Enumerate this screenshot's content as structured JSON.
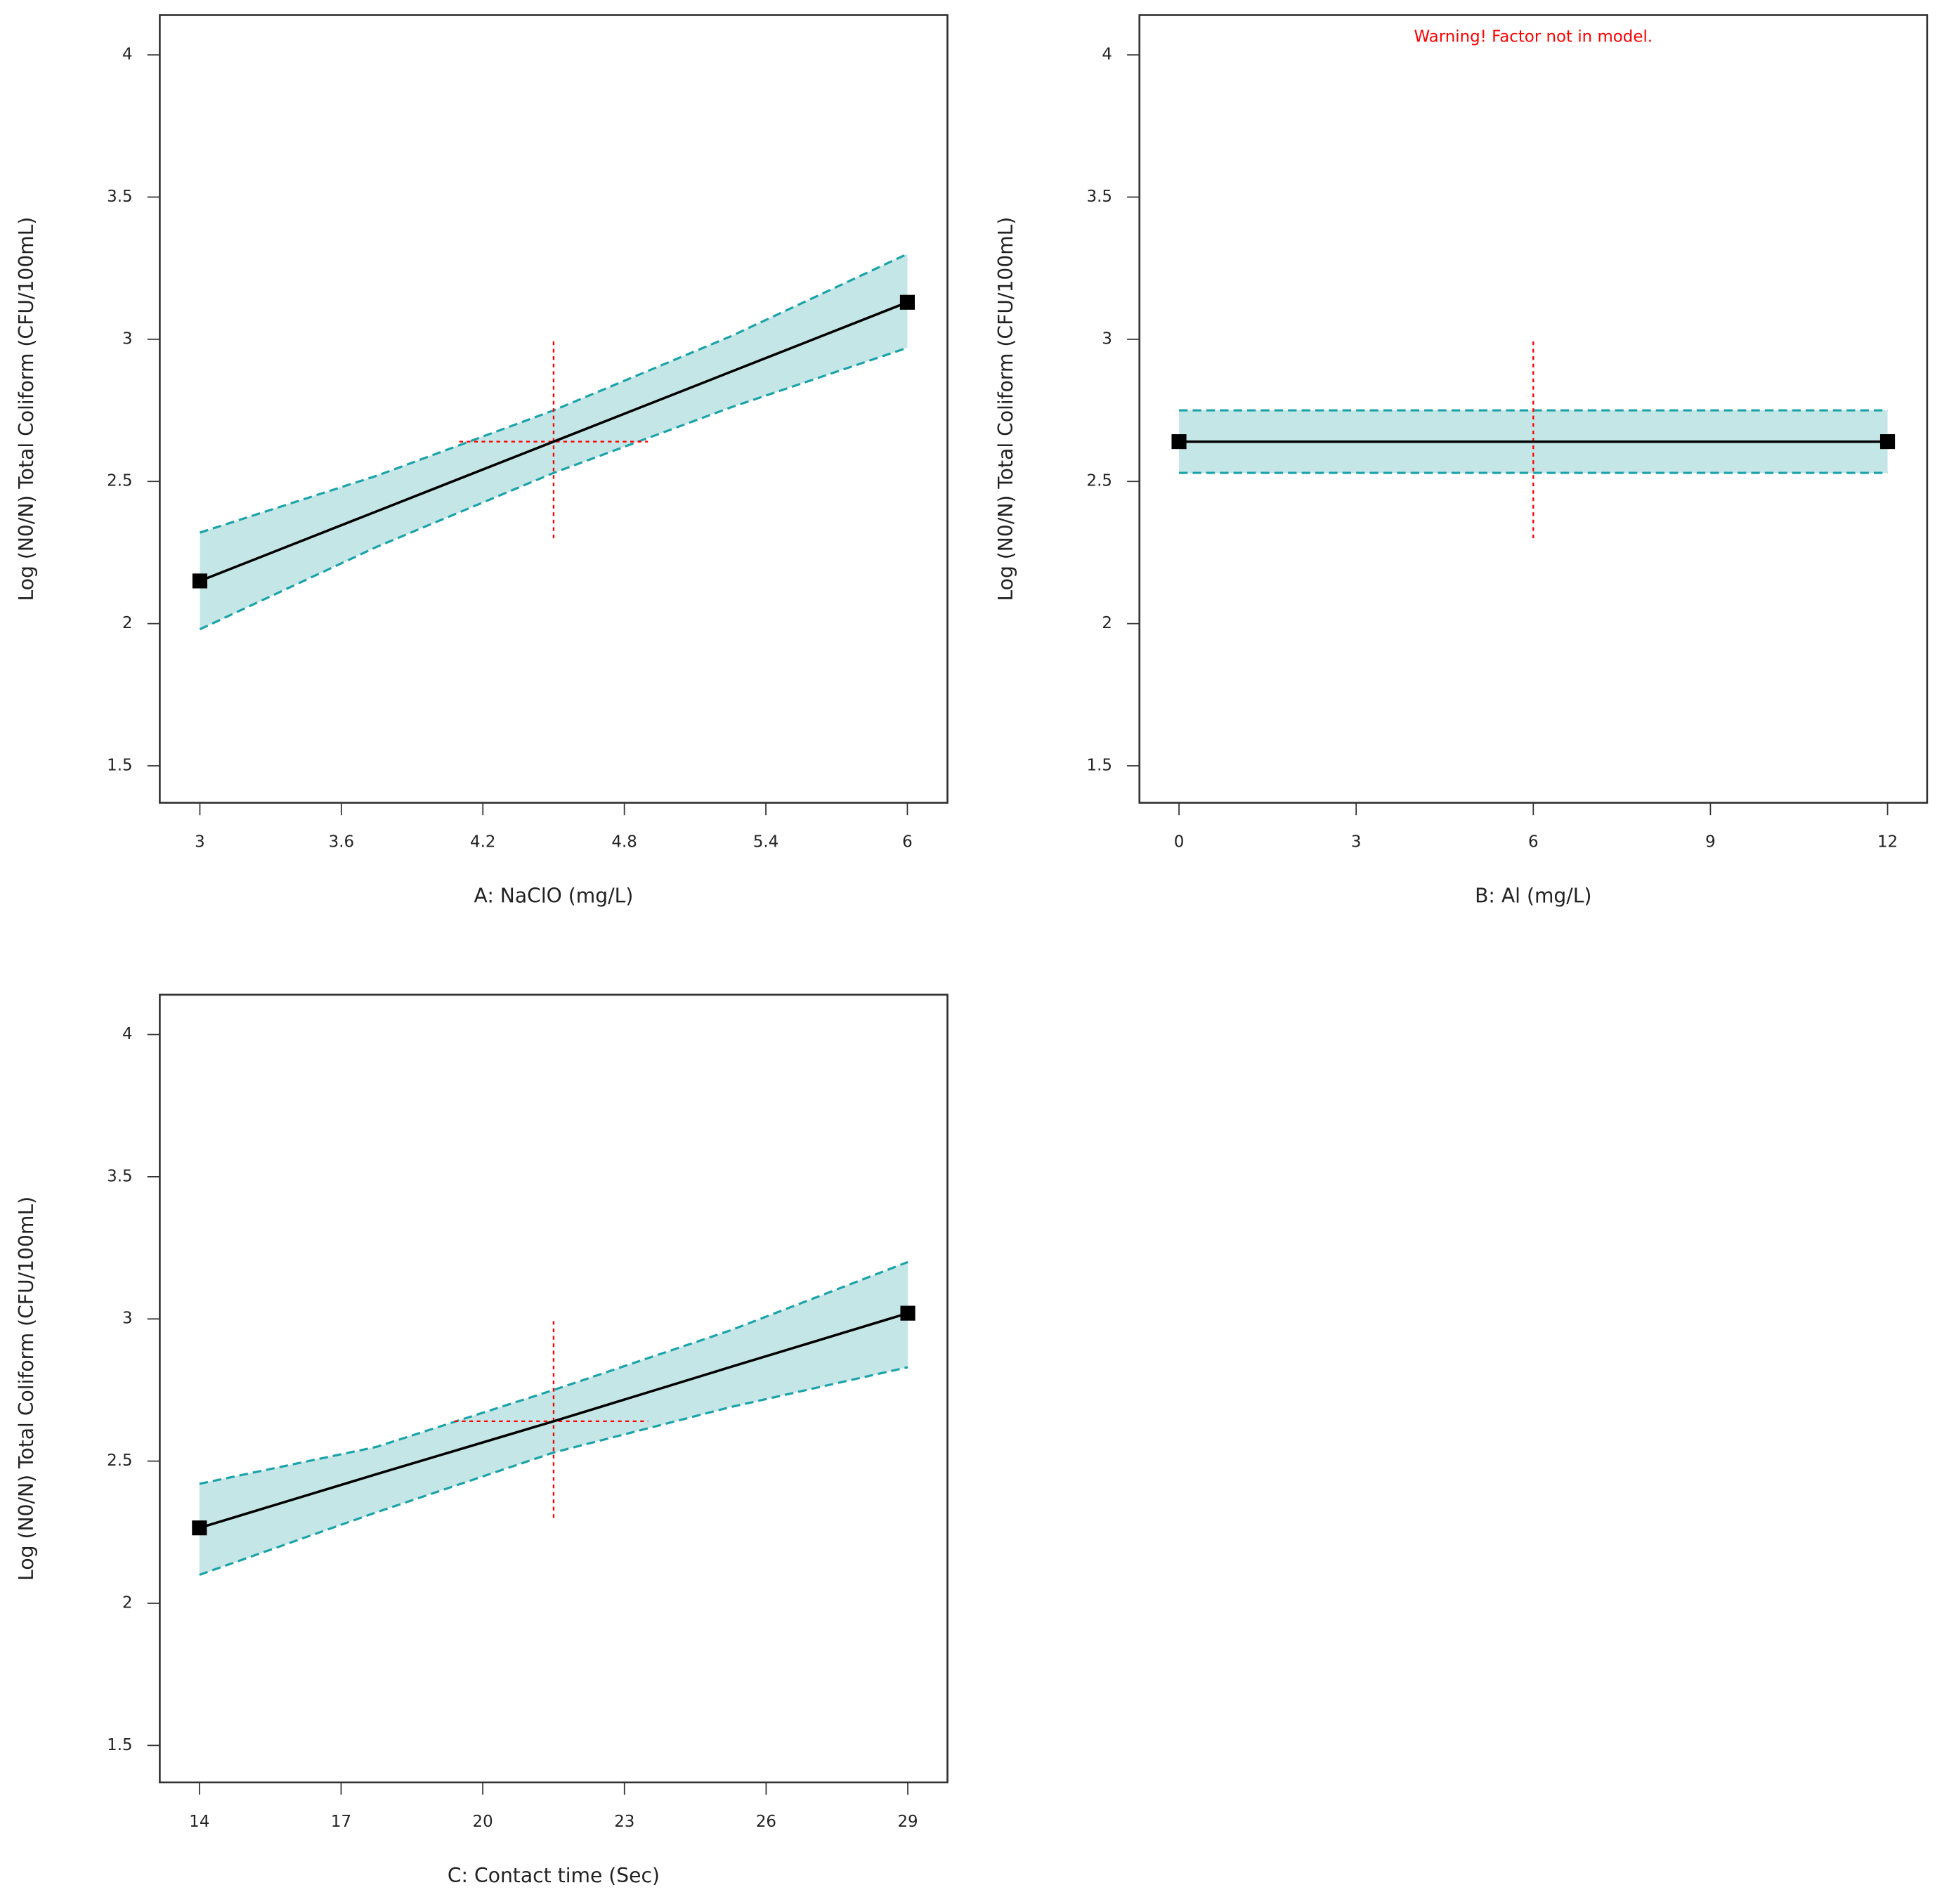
{
  "chart_data": [
    {
      "type": "line",
      "xlabel": "A: NaClO (mg/L)",
      "ylabel": "Log (N0/N) Total Coliform  (CFU/100mL)",
      "x": [
        3,
        3.75,
        4.5,
        5.25,
        6
      ],
      "values": [
        2.15,
        2.395,
        2.64,
        2.885,
        3.13
      ],
      "upper": [
        2.32,
        2.52,
        2.75,
        3.01,
        3.3
      ],
      "lower": [
        1.98,
        2.27,
        2.53,
        2.76,
        2.97
      ],
      "line_color": "#000000",
      "band_color": "#c5e6e6",
      "ci_color": "#1aa3a8",
      "crosshair_color": "#ff0000",
      "crosshair": {
        "x": 4.5,
        "y": 2.64,
        "x_range": [
          4.1,
          4.9
        ],
        "y_range": [
          2.3,
          3.0
        ]
      },
      "xlim": [
        2.83,
        6.17
      ],
      "xticks": [
        3,
        3.6,
        4.2,
        4.8,
        5.4,
        6
      ],
      "ylim": [
        1.37,
        4.14
      ],
      "yticks": [
        1.5,
        2,
        2.5,
        3,
        3.5,
        4
      ]
    },
    {
      "type": "line",
      "xlabel": "B: Al  (mg/L)",
      "ylabel": "Log (N0/N) Total Coliform  (CFU/100mL)",
      "annotation": "Warning! Factor not in model.",
      "x": [
        0,
        6,
        12
      ],
      "values": [
        2.64,
        2.64,
        2.64
      ],
      "upper": [
        2.75,
        2.75,
        2.75
      ],
      "lower": [
        2.53,
        2.53,
        2.53
      ],
      "line_color": "#000000",
      "band_color": "#c5e6e6",
      "ci_color": "#1aa3a8",
      "crosshair_color": "#ff0000",
      "crosshair": {
        "x": 6,
        "y_range": [
          2.3,
          3.0
        ]
      },
      "xlim": [
        -0.67,
        12.67
      ],
      "xticks": [
        0,
        3,
        6,
        9,
        12
      ],
      "ylim": [
        1.37,
        4.14
      ],
      "yticks": [
        1.5,
        2,
        2.5,
        3,
        3.5,
        4
      ]
    },
    {
      "type": "line",
      "xlabel": "C: Contact time (Sec)",
      "ylabel": "Log (N0/N) Total Coliform  (CFU/100mL)",
      "x": [
        14,
        17.75,
        21.5,
        25.25,
        29
      ],
      "values": [
        2.265,
        2.454,
        2.64,
        2.831,
        3.02
      ],
      "upper": [
        2.42,
        2.55,
        2.75,
        2.96,
        3.2
      ],
      "lower": [
        2.1,
        2.32,
        2.53,
        2.69,
        2.83
      ],
      "line_color": "#000000",
      "band_color": "#c5e6e6",
      "ci_color": "#1aa3a8",
      "crosshair_color": "#ff0000",
      "crosshair": {
        "x": 21.5,
        "y": 2.64,
        "x_range": [
          19.4,
          23.5
        ],
        "y_range": [
          2.3,
          3.0
        ]
      },
      "xlim": [
        13.16,
        29.84
      ],
      "xticks": [
        14,
        17,
        20,
        23,
        26,
        29
      ],
      "ylim": [
        1.37,
        4.14
      ],
      "yticks": [
        1.5,
        2,
        2.5,
        3,
        3.5,
        4
      ]
    }
  ]
}
